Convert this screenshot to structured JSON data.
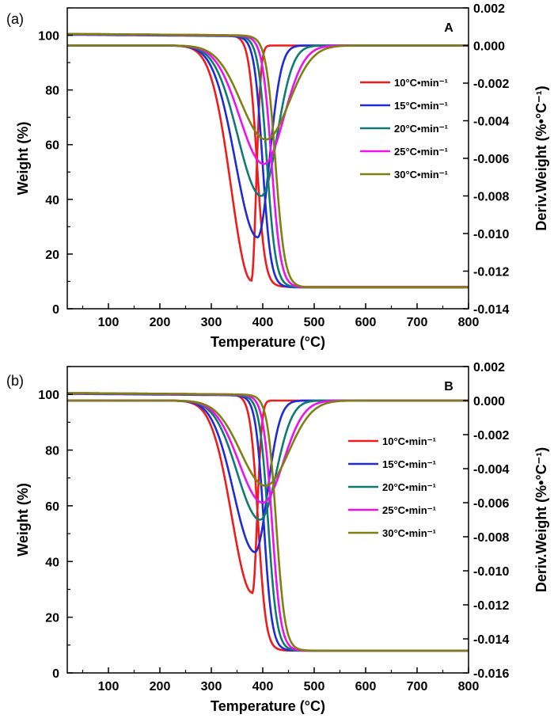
{
  "chart_data": [
    {
      "type": "line",
      "panel_label": "(a)",
      "corner_label": "A",
      "xlabel": "Temperature (°C)",
      "ylabel": "Weight (%)",
      "y2label": "Deriv.Weight (%•°C⁻¹)",
      "xlim": [
        20,
        800
      ],
      "ylim": [
        0,
        110
      ],
      "y2lim": [
        -0.014,
        0.002
      ],
      "xticks": [
        100,
        200,
        300,
        400,
        500,
        600,
        700,
        800
      ],
      "yticks": [
        0,
        20,
        40,
        60,
        80,
        100
      ],
      "y2ticks": [
        -0.014,
        -0.012,
        -0.01,
        -0.008,
        -0.006,
        -0.004,
        -0.002,
        0.0,
        0.002
      ],
      "legend_position": "right",
      "series": [
        {
          "name": "10°C•min⁻¹",
          "color": "#ee1c1c",
          "tg_start": 100.5,
          "residue": 8,
          "onset": 385,
          "end": 408,
          "dtg_start": 0.0,
          "dtg_peak_x": 378,
          "dtg_peak": -0.0125,
          "dtg_end_x": 410
        },
        {
          "name": "15°C•min⁻¹",
          "color": "#1e2bd6",
          "tg_start": 100.2,
          "residue": 7.8,
          "onset": 395,
          "end": 420,
          "dtg_start": 0.0,
          "dtg_peak_x": 390,
          "dtg_peak": -0.0102,
          "dtg_end_x": 470
        },
        {
          "name": "20°C•min⁻¹",
          "color": "#0f7a73",
          "tg_start": 100.3,
          "residue": 7.8,
          "onset": 402,
          "end": 430,
          "dtg_start": 0.0,
          "dtg_peak_x": 397,
          "dtg_peak": -0.008,
          "dtg_end_x": 505
        },
        {
          "name": "25°C•min⁻¹",
          "color": "#ee10ee",
          "tg_start": 100.4,
          "residue": 7.8,
          "onset": 410,
          "end": 440,
          "dtg_start": 0.0,
          "dtg_peak_x": 402,
          "dtg_peak": -0.0063,
          "dtg_end_x": 540
        },
        {
          "name": "30°C•min⁻¹",
          "color": "#7f7f12",
          "tg_start": 100.5,
          "residue": 7.8,
          "onset": 417,
          "end": 448,
          "dtg_start": 0.0,
          "dtg_peak_x": 406,
          "dtg_peak": -0.005,
          "dtg_end_x": 565
        }
      ]
    },
    {
      "type": "line",
      "panel_label": "(b)",
      "corner_label": "B",
      "xlabel": "Temperature (°C)",
      "ylabel": "Weight (%)",
      "y2label": "Deriv.Weight (%•°C⁻¹)",
      "xlim": [
        20,
        800
      ],
      "ylim": [
        0,
        110
      ],
      "y2lim": [
        -0.016,
        0.002
      ],
      "xticks": [
        100,
        200,
        300,
        400,
        500,
        600,
        700,
        800
      ],
      "yticks": [
        0,
        20,
        40,
        60,
        80,
        100
      ],
      "y2ticks": [
        -0.016,
        -0.014,
        -0.012,
        -0.01,
        -0.008,
        -0.006,
        -0.004,
        -0.002,
        0.0,
        0.002
      ],
      "legend_position": "right",
      "series": [
        {
          "name": "10°C•min⁻¹",
          "color": "#ee1c1c",
          "tg_start": 100.5,
          "residue": 8,
          "onset": 388,
          "end": 410,
          "dtg_start": 0.0,
          "dtg_peak_x": 380,
          "dtg_peak": -0.0113,
          "dtg_end_x": 412
        },
        {
          "name": "15°C•min⁻¹",
          "color": "#1e2bd6",
          "tg_start": 100.2,
          "residue": 8,
          "onset": 398,
          "end": 422,
          "dtg_start": 0.0,
          "dtg_peak_x": 385,
          "dtg_peak": -0.0089,
          "dtg_end_x": 470
        },
        {
          "name": "20°C•min⁻¹",
          "color": "#0f7a73",
          "tg_start": 100.3,
          "residue": 8,
          "onset": 405,
          "end": 432,
          "dtg_start": 0.0,
          "dtg_peak_x": 395,
          "dtg_peak": -0.007,
          "dtg_end_x": 505
        },
        {
          "name": "25°C•min⁻¹",
          "color": "#ee10ee",
          "tg_start": 100.4,
          "residue": 8,
          "onset": 412,
          "end": 440,
          "dtg_start": 0.0,
          "dtg_peak_x": 400,
          "dtg_peak": -0.006,
          "dtg_end_x": 540
        },
        {
          "name": "30°C•min⁻¹",
          "color": "#7f7f12",
          "tg_start": 100.5,
          "residue": 8,
          "onset": 420,
          "end": 448,
          "dtg_start": 0.0,
          "dtg_peak_x": 405,
          "dtg_peak": -0.005,
          "dtg_end_x": 565
        }
      ]
    }
  ]
}
